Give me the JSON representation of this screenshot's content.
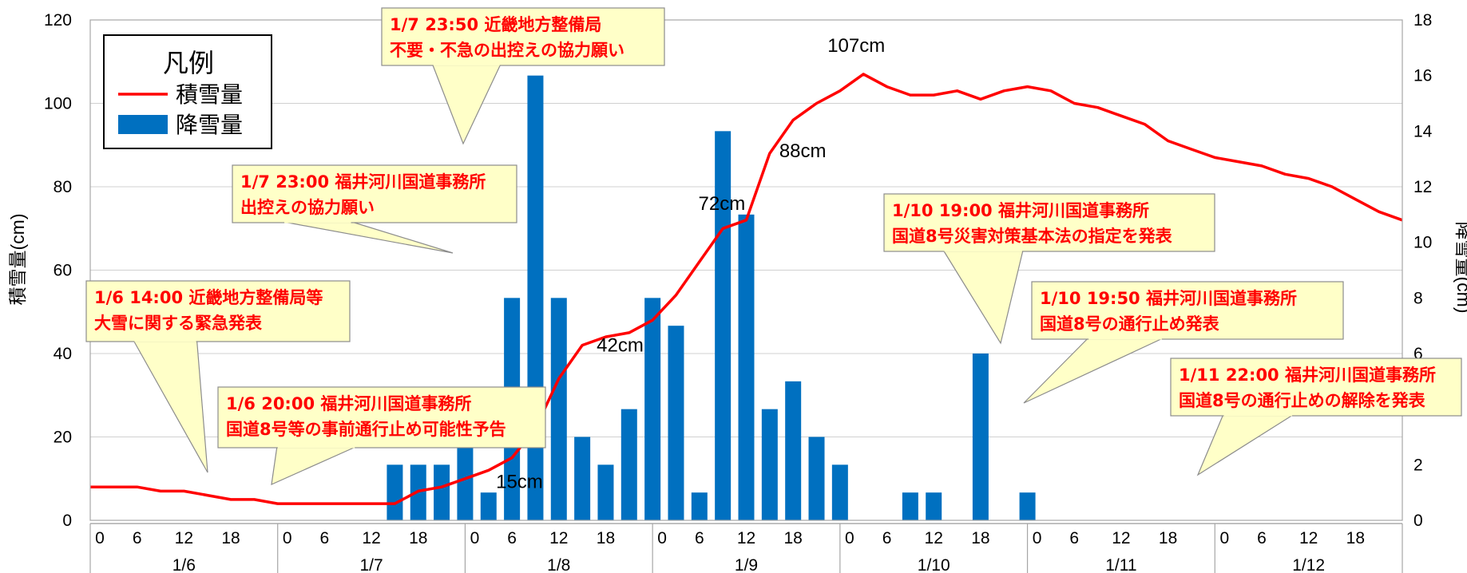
{
  "chart_data": {
    "type": "bar+line",
    "legend": {
      "title": "凡例",
      "placement": "top-left",
      "items": [
        {
          "label": "積雪量",
          "type": "line",
          "color": "#ff0000"
        },
        {
          "label": "降雪量",
          "type": "bar",
          "color": "#0070c0"
        }
      ]
    },
    "ylabel_left": "積雪量(cm)",
    "ylabel_right": "降雪量(cm)",
    "ylim_left": [
      0,
      120
    ],
    "ylim_right": [
      0,
      18
    ],
    "yticks_left": [
      "0",
      "20",
      "40",
      "60",
      "80",
      "100",
      "120"
    ],
    "yticks_right": [
      "0",
      "2",
      "4",
      "6",
      "8",
      "10",
      "12",
      "14",
      "16",
      "18"
    ],
    "x_hour_ticks": [
      "0",
      "6",
      "12",
      "18"
    ],
    "x_days": [
      "1/6",
      "1/7",
      "1/8",
      "1/9",
      "1/10",
      "1/11",
      "1/12"
    ],
    "grid": "horizontal",
    "x_unit": "hours from 1/6 0:00",
    "series": [
      {
        "name": "積雪量",
        "type": "line",
        "color": "#ff0000",
        "axis": "left",
        "points": [
          [
            0,
            8
          ],
          [
            3,
            8
          ],
          [
            6,
            8
          ],
          [
            9,
            7
          ],
          [
            12,
            7
          ],
          [
            15,
            6
          ],
          [
            18,
            5
          ],
          [
            21,
            5
          ],
          [
            24,
            4
          ],
          [
            27,
            4
          ],
          [
            30,
            4
          ],
          [
            33,
            4
          ],
          [
            36,
            4
          ],
          [
            39,
            4
          ],
          [
            42,
            7
          ],
          [
            45,
            8
          ],
          [
            48,
            10
          ],
          [
            51,
            12
          ],
          [
            54,
            15
          ],
          [
            57,
            22
          ],
          [
            60,
            34
          ],
          [
            63,
            42
          ],
          [
            66,
            44
          ],
          [
            69,
            45
          ],
          [
            72,
            48
          ],
          [
            75,
            54
          ],
          [
            78,
            62
          ],
          [
            81,
            70
          ],
          [
            84,
            72
          ],
          [
            87,
            88
          ],
          [
            90,
            96
          ],
          [
            93,
            100
          ],
          [
            96,
            103
          ],
          [
            99,
            107
          ],
          [
            102,
            104
          ],
          [
            105,
            102
          ],
          [
            108,
            102
          ],
          [
            111,
            103
          ],
          [
            114,
            101
          ],
          [
            117,
            103
          ],
          [
            120,
            104
          ],
          [
            123,
            103
          ],
          [
            126,
            100
          ],
          [
            129,
            99
          ],
          [
            132,
            97
          ],
          [
            135,
            95
          ],
          [
            138,
            91
          ],
          [
            141,
            89
          ],
          [
            144,
            87
          ],
          [
            147,
            86
          ],
          [
            150,
            85
          ],
          [
            153,
            83
          ],
          [
            156,
            82
          ],
          [
            159,
            80
          ],
          [
            162,
            77
          ],
          [
            165,
            74
          ],
          [
            168,
            72
          ]
        ]
      },
      {
        "name": "降雪量",
        "type": "bar",
        "color": "#0070c0",
        "axis": "right",
        "points": [
          [
            39,
            2
          ],
          [
            42,
            2
          ],
          [
            45,
            2
          ],
          [
            48,
            3
          ],
          [
            51,
            1
          ],
          [
            54,
            8
          ],
          [
            57,
            16
          ],
          [
            60,
            8
          ],
          [
            63,
            3
          ],
          [
            66,
            2
          ],
          [
            69,
            4
          ],
          [
            72,
            8
          ],
          [
            75,
            7
          ],
          [
            78,
            1
          ],
          [
            81,
            14
          ],
          [
            84,
            11
          ],
          [
            87,
            4
          ],
          [
            90,
            5
          ],
          [
            93,
            3
          ],
          [
            96,
            2
          ],
          [
            105,
            1
          ],
          [
            108,
            1
          ],
          [
            114,
            6
          ],
          [
            120,
            1
          ]
        ]
      }
    ],
    "point_labels": [
      {
        "text": "15cm",
        "x": 54,
        "y": 15
      },
      {
        "text": "42cm",
        "x": 63,
        "y": 42
      },
      {
        "text": "72cm",
        "x": 84,
        "y": 72
      },
      {
        "text": "88cm",
        "x": 87,
        "y": 88
      },
      {
        "text": "107cm",
        "x": 99,
        "y": 107
      }
    ],
    "annotations": [
      {
        "lines": [
          "1/6 14:00 近畿地方整備局等",
          "大雪に関する緊急発表"
        ],
        "time": "1/6 14:00"
      },
      {
        "lines": [
          "1/6 20:00 福井河川国道事務所",
          "国道8号等の事前通行止め可能性予告"
        ],
        "time": "1/6 20:00"
      },
      {
        "lines": [
          "1/7 23:00 福井河川国道事務所",
          "出控えの協力願い"
        ],
        "time": "1/7 23:00"
      },
      {
        "lines": [
          "1/7 23:50 近畿地方整備局",
          "不要・不急の出控えの協力願い"
        ],
        "time": "1/7 23:50"
      },
      {
        "lines": [
          "1/10 19:00 福井河川国道事務所",
          "国道8号災害対策基本法の指定を発表"
        ],
        "time": "1/10 19:00"
      },
      {
        "lines": [
          "1/10 19:50 福井河川国道事務所",
          "国道8号の通行止め発表"
        ],
        "time": "1/10 19:50"
      },
      {
        "lines": [
          "1/11 22:00 福井河川国道事務所",
          "国道8号の通行止めの解除を発表"
        ],
        "time": "1/11 22:00"
      }
    ]
  }
}
